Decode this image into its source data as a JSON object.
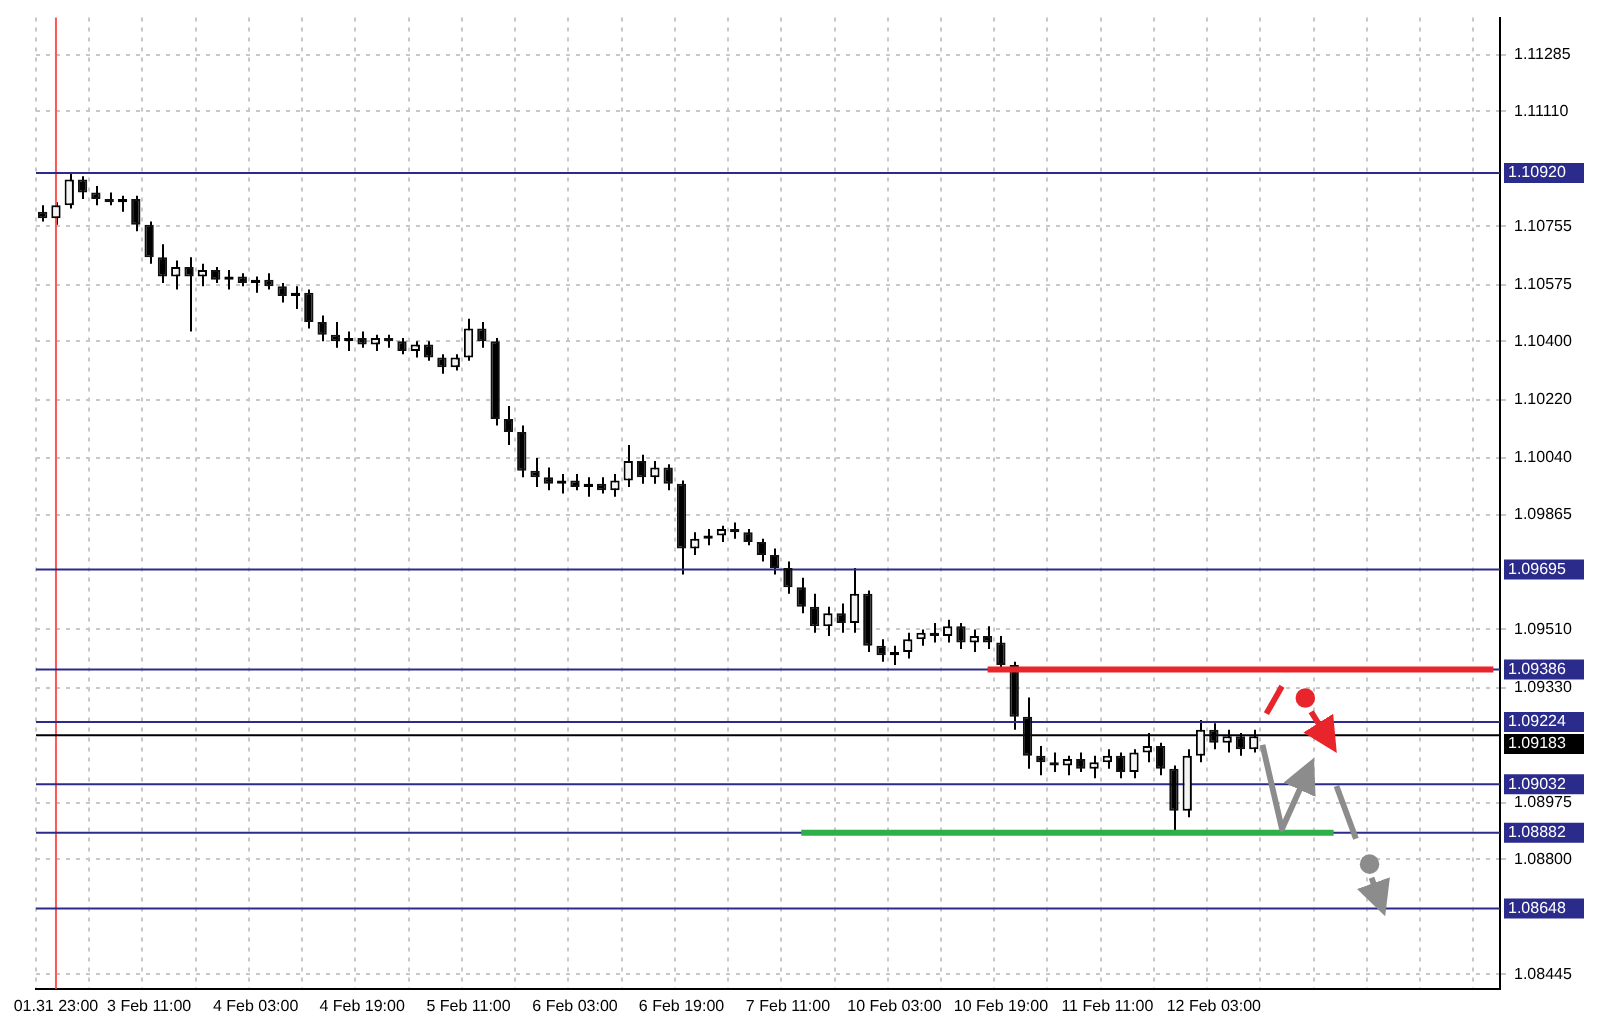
{
  "chart_data": {
    "type": "candlestick",
    "categories": [
      null,
      "01.31 23:00",
      null,
      null,
      null,
      null,
      null,
      null,
      "3 Feb 11:00",
      null,
      null,
      null,
      null,
      null,
      null,
      null,
      "4 Feb 03:00",
      null,
      null,
      null,
      null,
      null,
      null,
      null,
      "4 Feb 19:00",
      null,
      null,
      null,
      null,
      null,
      null,
      null,
      "5 Feb 11:00",
      null,
      null,
      null,
      null,
      null,
      null,
      null,
      "6 Feb 03:00",
      null,
      null,
      null,
      null,
      null,
      null,
      null,
      "6 Feb 19:00",
      null,
      null,
      null,
      null,
      null,
      null,
      null,
      "7 Feb 11:00",
      null,
      null,
      null,
      null,
      null,
      null,
      null,
      "10 Feb 03:00",
      null,
      null,
      null,
      null,
      null,
      null,
      null,
      "10 Feb 19:00",
      null,
      null,
      null,
      null,
      null,
      null,
      null,
      "11 Feb 11:00",
      null,
      null,
      null,
      null,
      null,
      null,
      null,
      "12 Feb 03:00",
      null,
      null,
      null,
      null,
      null,
      null,
      null,
      null,
      null,
      null,
      null,
      null,
      null,
      null,
      null,
      null,
      null,
      null,
      null,
      null,
      null
    ],
    "ohlc": [
      [
        1.108,
        1.1082,
        1.1077,
        1.1078
      ],
      [
        1.1078,
        1.1083,
        1.1076,
        1.1082
      ],
      [
        1.1082,
        1.1092,
        1.1081,
        1.109
      ],
      [
        1.109,
        1.1091,
        1.1084,
        1.1086
      ],
      [
        1.1086,
        1.1088,
        1.1082,
        1.1084
      ],
      [
        1.1084,
        1.1086,
        1.1082,
        1.1083
      ],
      [
        1.1083,
        1.1085,
        1.108,
        1.1084
      ],
      [
        1.1084,
        1.1085,
        1.1074,
        1.1076
      ],
      [
        1.1076,
        1.1077,
        1.1064,
        1.1066
      ],
      [
        1.1066,
        1.107,
        1.1058,
        1.106
      ],
      [
        1.106,
        1.1065,
        1.1056,
        1.1063
      ],
      [
        1.1063,
        1.1066,
        1.1043,
        1.106
      ],
      [
        1.106,
        1.1064,
        1.1057,
        1.1062
      ],
      [
        1.1062,
        1.1063,
        1.1058,
        1.1059
      ],
      [
        1.1059,
        1.1062,
        1.1056,
        1.106
      ],
      [
        1.106,
        1.1061,
        1.1057,
        1.1058
      ],
      [
        1.1058,
        1.106,
        1.1055,
        1.1059
      ],
      [
        1.1059,
        1.1061,
        1.1056,
        1.1057
      ],
      [
        1.1057,
        1.1058,
        1.1052,
        1.1054
      ],
      [
        1.1054,
        1.1057,
        1.105,
        1.1055
      ],
      [
        1.1055,
        1.1056,
        1.1044,
        1.1046
      ],
      [
        1.1046,
        1.1048,
        1.104,
        1.1042
      ],
      [
        1.1042,
        1.1046,
        1.1038,
        1.104
      ],
      [
        1.104,
        1.1043,
        1.1037,
        1.1041
      ],
      [
        1.1041,
        1.1043,
        1.1038,
        1.1039
      ],
      [
        1.1039,
        1.1042,
        1.1037,
        1.1041
      ],
      [
        1.1041,
        1.1042,
        1.1038,
        1.104
      ],
      [
        1.104,
        1.1041,
        1.1036,
        1.1037
      ],
      [
        1.1037,
        1.104,
        1.1035,
        1.1039
      ],
      [
        1.1039,
        1.104,
        1.1034,
        1.1035
      ],
      [
        1.1035,
        1.1036,
        1.103,
        1.1032
      ],
      [
        1.1032,
        1.1036,
        1.1031,
        1.1035
      ],
      [
        1.1035,
        1.1047,
        1.1034,
        1.1044
      ],
      [
        1.1044,
        1.1046,
        1.1038,
        1.104
      ],
      [
        1.104,
        1.1041,
        1.1014,
        1.1016
      ],
      [
        1.1016,
        1.102,
        1.1008,
        1.1012
      ],
      [
        1.1012,
        1.1014,
        1.0998,
        1.1
      ],
      [
        1.1,
        1.1004,
        1.0995,
        1.0998
      ],
      [
        1.0998,
        1.1001,
        1.0994,
        1.0996
      ],
      [
        1.0996,
        1.0999,
        1.0993,
        1.0997
      ],
      [
        1.0997,
        1.0999,
        1.0994,
        1.0995
      ],
      [
        1.0995,
        1.0998,
        1.0992,
        1.0996
      ],
      [
        1.0996,
        1.0998,
        1.0993,
        1.0994
      ],
      [
        1.0994,
        1.0999,
        1.0992,
        1.0997
      ],
      [
        1.0997,
        1.1008,
        1.0995,
        1.1003
      ],
      [
        1.1003,
        1.1005,
        1.0996,
        1.0998
      ],
      [
        1.0998,
        1.1003,
        1.0996,
        1.1001
      ],
      [
        1.1001,
        1.1002,
        1.0994,
        1.0996
      ],
      [
        1.0996,
        1.0997,
        1.0968,
        1.0976
      ],
      [
        1.0976,
        1.0981,
        1.0974,
        1.0979
      ],
      [
        1.0979,
        1.0982,
        1.0977,
        1.098
      ],
      [
        1.098,
        1.0983,
        1.0978,
        1.0982
      ],
      [
        1.0982,
        1.0984,
        1.0979,
        1.0981
      ],
      [
        1.0981,
        1.0982,
        1.0977,
        1.0978
      ],
      [
        1.0978,
        1.0979,
        1.0972,
        1.0974
      ],
      [
        1.0974,
        1.0976,
        1.0968,
        1.097
      ],
      [
        1.097,
        1.0972,
        1.0962,
        1.0964
      ],
      [
        1.0964,
        1.0967,
        1.0956,
        1.0958
      ],
      [
        1.0958,
        1.0962,
        1.095,
        1.0952
      ],
      [
        1.0952,
        1.0958,
        1.0949,
        1.0956
      ],
      [
        1.0956,
        1.0959,
        1.095,
        1.0953
      ],
      [
        1.0953,
        1.097,
        1.095,
        1.0962
      ],
      [
        1.0962,
        1.0963,
        1.0944,
        1.0946
      ],
      [
        1.0946,
        1.0948,
        1.0941,
        1.0943
      ],
      [
        1.0943,
        1.0946,
        1.094,
        1.0944
      ],
      [
        1.0944,
        1.095,
        1.0942,
        1.0948
      ],
      [
        1.0948,
        1.0951,
        1.0946,
        1.095
      ],
      [
        1.095,
        1.0953,
        1.0947,
        1.0949
      ],
      [
        1.0949,
        1.0954,
        1.0947,
        1.0952
      ],
      [
        1.0952,
        1.0953,
        1.0945,
        1.0947
      ],
      [
        1.0947,
        1.0951,
        1.0944,
        1.0949
      ],
      [
        1.0949,
        1.0952,
        1.0945,
        1.0947
      ],
      [
        1.0947,
        1.0949,
        1.0938,
        1.094
      ],
      [
        1.094,
        1.0941,
        1.092,
        1.0924
      ],
      [
        1.0924,
        1.093,
        1.0908,
        1.0912
      ],
      [
        1.0912,
        1.0915,
        1.0906,
        1.091
      ],
      [
        1.091,
        1.0913,
        1.0907,
        1.0909
      ],
      [
        1.0909,
        1.0912,
        1.0906,
        1.0911
      ],
      [
        1.0911,
        1.0913,
        1.0907,
        1.0908
      ],
      [
        1.0908,
        1.0912,
        1.0905,
        1.091
      ],
      [
        1.091,
        1.0914,
        1.0908,
        1.0912
      ],
      [
        1.0912,
        1.0913,
        1.0905,
        1.0907
      ],
      [
        1.0907,
        1.0914,
        1.0905,
        1.0913
      ],
      [
        1.0913,
        1.0919,
        1.091,
        1.0915
      ],
      [
        1.0915,
        1.0916,
        1.0906,
        1.0908
      ],
      [
        1.0908,
        1.0909,
        1.0889,
        1.0895
      ],
      [
        1.0895,
        1.0914,
        1.0893,
        1.0912
      ],
      [
        1.0912,
        1.0923,
        1.091,
        1.092
      ],
      [
        1.092,
        1.0922,
        1.0914,
        1.0916
      ],
      [
        1.0916,
        1.092,
        1.0913,
        1.0918
      ],
      [
        1.0918,
        1.0919,
        1.0912,
        1.0914
      ],
      [
        1.0914,
        1.092,
        1.0913,
        1.0918
      ],
      null,
      null,
      null,
      null,
      null,
      null,
      null,
      null,
      null,
      null,
      null,
      null,
      null,
      null,
      null,
      null,
      null,
      null
    ],
    "series": [
      {
        "type": "line",
        "color": "#e8252b",
        "values": [
          null,
          null,
          null,
          null,
          null,
          null,
          null,
          null,
          null,
          null,
          null,
          null,
          null,
          null,
          null,
          null,
          null,
          null,
          null,
          null,
          null,
          null,
          null,
          null,
          null,
          null,
          null,
          null,
          null,
          null,
          null,
          null,
          null,
          null,
          null,
          null,
          null,
          null,
          null,
          null,
          null,
          null,
          null,
          null,
          null,
          null,
          null,
          null,
          null,
          null,
          null,
          null,
          null,
          null,
          null,
          null,
          null,
          null,
          null,
          null,
          null,
          null,
          null,
          null,
          null,
          null,
          null,
          null,
          null,
          null,
          null,
          1.09386,
          1.09386,
          1.09386,
          1.09386,
          1.09386,
          1.09386,
          1.09386,
          1.09386,
          1.09386,
          1.09386,
          1.09386,
          1.09386,
          1.09386,
          1.09386,
          1.09386,
          1.09386,
          1.09386,
          1.09386,
          1.09386,
          1.09386,
          1.09386,
          1.09386,
          1.09386,
          1.09386,
          1.09386,
          1.09386,
          1.09386,
          1.09386,
          1.09386,
          1.09386,
          1.09386,
          1.09386,
          1.09386,
          1.09386,
          1.09386,
          1.09386,
          1.09386,
          1.09386,
          1.09386
        ]
      },
      {
        "type": "line",
        "color": "#2eaf4a",
        "values": [
          null,
          null,
          null,
          null,
          null,
          null,
          null,
          null,
          null,
          null,
          null,
          null,
          null,
          null,
          null,
          null,
          null,
          null,
          null,
          null,
          null,
          null,
          null,
          null,
          null,
          null,
          null,
          null,
          null,
          null,
          null,
          null,
          null,
          null,
          null,
          null,
          null,
          null,
          null,
          null,
          null,
          null,
          null,
          null,
          null,
          null,
          null,
          null,
          null,
          null,
          null,
          null,
          null,
          null,
          null,
          null,
          null,
          1.08882,
          1.08882,
          1.08882,
          1.08882,
          1.08882,
          1.08882,
          1.08882,
          1.08882,
          1.08882,
          1.08882,
          1.08882,
          1.08882,
          1.08882,
          1.08882,
          1.08882,
          1.08882,
          1.08882,
          1.08882,
          1.08882,
          1.08882,
          1.08882,
          1.08882,
          1.08882,
          1.08882,
          1.08882,
          1.08882,
          1.08882,
          1.08882,
          1.08882,
          1.08882,
          1.08882,
          1.08882,
          1.08882,
          1.08882,
          1.08882,
          1.08882,
          1.08882,
          1.08882,
          1.08882,
          1.08882,
          1.08882,
          null,
          null,
          null,
          null,
          null,
          null,
          null,
          null,
          null,
          null,
          null,
          null
        ]
      }
    ],
    "ylim": [
      1.084,
      1.114
    ],
    "yticks": [
      1.08445,
      {
        "value": 1.088,
        "label": "1.08800"
      },
      1.08975,
      {
        "value": 1.0933,
        "label": "1.09330"
      },
      {
        "value": 1.0951,
        "label": "1.09510"
      },
      1.09865,
      {
        "value": 1.1004,
        "label": "1.10040"
      },
      {
        "value": 1.1022,
        "label": "1.10220"
      },
      {
        "value": 1.104,
        "label": "1.10400"
      },
      1.10575,
      1.10755,
      {
        "value": 1.1111,
        "label": "1.11110"
      },
      1.11285
    ],
    "ref_lines": [
      {
        "axis": "x",
        "value": "01.31 23:00",
        "color": "#ff5555"
      },
      {
        "axis": "y",
        "value": 1.1092,
        "label": "1.10920",
        "color": "#2b2b8c"
      },
      {
        "axis": "y",
        "value": 1.09695,
        "label": "1.09695",
        "color": "#2b2b8c"
      },
      {
        "axis": "y",
        "value": 1.09386,
        "label": "1.09386",
        "color": "#2b2b8c"
      },
      {
        "axis": "y",
        "value": 1.09224,
        "label": "1.09224",
        "color": "#2b2b8c"
      },
      {
        "axis": "y",
        "value": 1.09183,
        "label": "1.09183",
        "color": "#000000"
      },
      {
        "axis": "y",
        "value": 1.09032,
        "label": "1.09032",
        "color": "#2b2b8c"
      },
      {
        "axis": "y",
        "value": 1.08882,
        "label": "1.08882",
        "color": "#2b2b8c"
      },
      {
        "axis": "y",
        "value": 1.08648,
        "label": "1.08648",
        "color": "#2b2b8c"
      }
    ],
    "grid": true,
    "legend": false
  }
}
